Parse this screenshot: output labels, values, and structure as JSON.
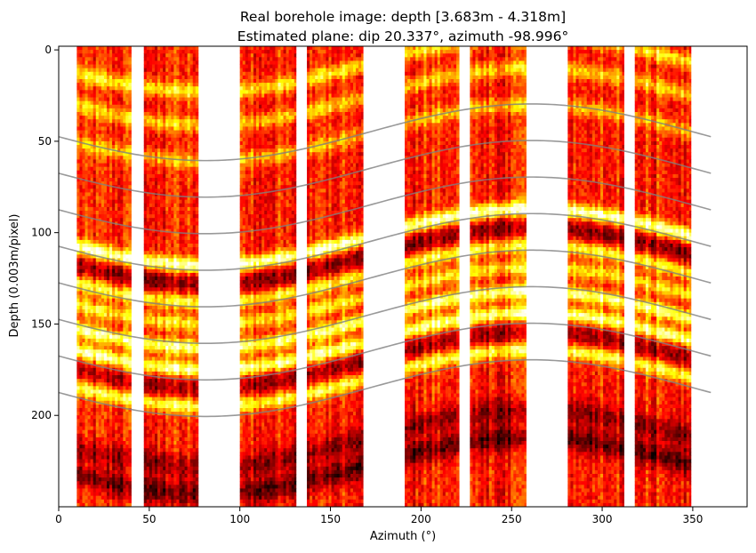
{
  "chart_data": {
    "type": "heatmap",
    "title_line1": "Real borehole image: depth [3.683m - 4.318m]",
    "title_line2": "Estimated plane: dip 20.337°, azimuth -98.996°",
    "xlabel": "Azimuth (°)",
    "ylabel": "Depth (0.003m/pixel)",
    "xlim": [
      0,
      380
    ],
    "ylim": [
      250,
      -2
    ],
    "y_inverted": true,
    "x_ticks": [
      0,
      50,
      100,
      150,
      200,
      250,
      300,
      350
    ],
    "y_ticks": [
      0,
      50,
      100,
      150,
      200
    ],
    "colormap": "hot",
    "image_strips_azimuth": [
      [
        10,
        40
      ],
      [
        47,
        77
      ],
      [
        100,
        131
      ],
      [
        137,
        168
      ],
      [
        191,
        221
      ],
      [
        227,
        258
      ],
      [
        281,
        312
      ],
      [
        318,
        349
      ]
    ],
    "bright_bands": [
      {
        "base_depth": 105,
        "intensity": 1.0
      },
      {
        "base_depth": 125,
        "intensity": 0.7
      },
      {
        "base_depth": 137,
        "intensity": 0.6
      },
      {
        "base_depth": 150,
        "intensity": 0.85
      },
      {
        "base_depth": 162,
        "intensity": 0.9
      },
      {
        "base_depth": 182,
        "intensity": 0.75
      },
      {
        "base_depth": 10,
        "intensity": 0.6
      },
      {
        "base_depth": 28,
        "intensity": 0.5
      },
      {
        "base_depth": 48,
        "intensity": 0.45
      }
    ],
    "dark_bands": [
      {
        "base_depth": 115,
        "intensity": 0.6
      },
      {
        "base_depth": 172,
        "intensity": 0.5
      },
      {
        "base_depth": 230,
        "intensity": 0.8
      },
      {
        "base_depth": 215,
        "intensity": 0.6
      }
    ],
    "sinusoid_plane": {
      "amplitude_depth": 15.5,
      "phase_azimuth_deg": -98.996,
      "dip_deg": 20.337,
      "x_range": [
        0,
        360
      ],
      "center_depths_at_0deg": [
        47.5,
        67.5,
        87.5,
        107.5,
        127.5,
        147.5,
        167.5,
        187.5
      ],
      "color": "#808080"
    },
    "colors": {
      "cmap_dark": "#2a0000",
      "cmap_mid": "#d41a00",
      "cmap_bright": "#ffff60"
    }
  }
}
